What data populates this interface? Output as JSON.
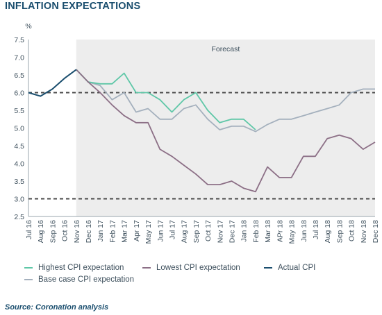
{
  "title": "INFLATION EXPECTATIONS",
  "source": "Source: Coronation analysis",
  "chart_data": {
    "type": "line",
    "ylabel": "%",
    "ylim": [
      2.5,
      7.5
    ],
    "yticks": [
      "2.5",
      "3.0",
      "3.5",
      "4.0",
      "4.5",
      "5.0",
      "5.5",
      "6.0",
      "6.5",
      "7.0",
      "7.5"
    ],
    "categories": [
      "Jul 16",
      "Aug 16",
      "Sep 16",
      "Oct 16",
      "Nov 16",
      "Dec 16",
      "Jan 17",
      "Feb 17",
      "Mar 17",
      "Apr 17",
      "May 17",
      "Jun 17",
      "Jul 17",
      "Aug 17",
      "Sep 17",
      "Oct 17",
      "Nov 17",
      "Dec 17",
      "Jan 18",
      "Feb 18",
      "Mar 18",
      "APr 18",
      "May 18",
      "Jun 18",
      "Jul 18",
      "Aug 18",
      "Sep 18",
      "Oct 18",
      "Nov 18",
      "Dec 18"
    ],
    "forecast_label": "Forecast",
    "forecast_start": "Nov 16",
    "target_band": [
      3.0,
      6.0
    ],
    "series": [
      {
        "name": "Actual CPI",
        "color": "#1a4e6e",
        "values": [
          6.0,
          5.9,
          6.1,
          6.4,
          6.65,
          null,
          null,
          null,
          null,
          null,
          null,
          null,
          null,
          null,
          null,
          null,
          null,
          null,
          null,
          null,
          null,
          null,
          null,
          null,
          null,
          null,
          null,
          null,
          null,
          null
        ]
      },
      {
        "name": "Highest CPI expectation",
        "color": "#5ec7a7",
        "values": [
          null,
          null,
          null,
          null,
          6.65,
          6.3,
          6.25,
          6.25,
          6.55,
          6.0,
          6.0,
          5.8,
          5.45,
          5.8,
          6.0,
          5.5,
          5.15,
          5.25,
          5.25,
          4.95,
          null,
          null,
          null,
          null,
          null,
          null,
          null,
          null,
          null,
          null
        ]
      },
      {
        "name": "Base case CPI expectation",
        "color": "#a4b0bd",
        "values": [
          null,
          null,
          null,
          null,
          6.65,
          6.3,
          6.2,
          5.8,
          6.0,
          5.45,
          5.55,
          5.25,
          5.25,
          5.55,
          5.65,
          5.25,
          4.95,
          5.05,
          5.05,
          4.9,
          5.1,
          5.25,
          5.25,
          5.35,
          5.45,
          5.55,
          5.65,
          6.0,
          6.1,
          6.1
        ]
      },
      {
        "name": "Lowest CPI expectation",
        "color": "#8c6f86",
        "values": [
          null,
          null,
          null,
          null,
          6.65,
          6.3,
          6.0,
          5.65,
          5.35,
          5.15,
          5.15,
          4.4,
          4.2,
          3.95,
          3.7,
          3.4,
          3.4,
          3.5,
          3.3,
          3.2,
          3.9,
          3.6,
          3.6,
          4.2,
          4.2,
          4.7,
          4.8,
          4.7,
          4.4,
          4.6
        ]
      }
    ],
    "legend": [
      {
        "label": "Highest CPI expectation",
        "color": "#5ec7a7"
      },
      {
        "label": "Lowest CPI expectation",
        "color": "#8c6f86"
      },
      {
        "label": "Actual CPI",
        "color": "#1a4e6e"
      },
      {
        "label": "Base case CPI expectation",
        "color": "#a4b0bd"
      }
    ],
    "grid": false,
    "legend_position": "bottom"
  }
}
